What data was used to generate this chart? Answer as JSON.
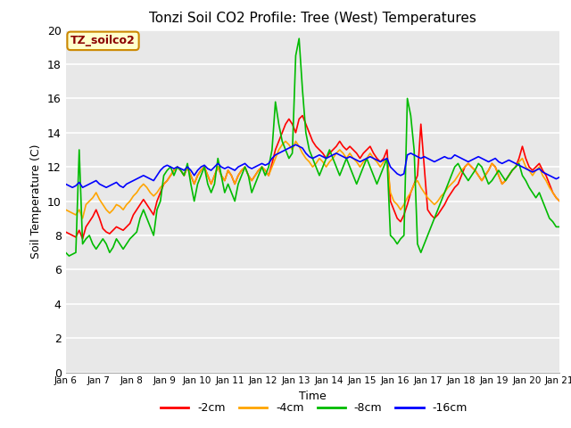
{
  "title": "Tonzi Soil CO2 Profile: Tree (West) Temperatures",
  "xlabel": "Time",
  "ylabel": "Soil Temperature (C)",
  "ylim": [
    0,
    20
  ],
  "yticks": [
    0,
    2,
    4,
    6,
    8,
    10,
    12,
    14,
    16,
    18,
    20
  ],
  "xtick_labels": [
    "Jan 6",
    "Jan 7",
    "Jan 8",
    "Jan 9",
    "Jan 10",
    "Jan 11",
    "Jan 12",
    "Jan 13",
    "Jan 14",
    "Jan 15",
    "Jan 16",
    "Jan 17",
    "Jan 18",
    "Jan 19",
    "Jan 20",
    "Jan 21"
  ],
  "colors": {
    "2cm": "#ff0000",
    "4cm": "#ffa500",
    "8cm": "#00bb00",
    "16cm": "#0000ff"
  },
  "legend_labels": [
    "-2cm",
    "-4cm",
    "-8cm",
    "-16cm"
  ],
  "annotation_text": "TZ_soilco2",
  "annotation_color": "#8b0000",
  "annotation_bg": "#ffffcc",
  "annotation_border": "#cc8800",
  "bg_color": "#e8e8e8",
  "linewidth": 1.2,
  "data_2cm": [
    8.2,
    8.1,
    8.0,
    7.9,
    8.3,
    7.8,
    8.5,
    8.8,
    9.1,
    9.5,
    9.0,
    8.4,
    8.2,
    8.1,
    8.3,
    8.5,
    8.4,
    8.3,
    8.5,
    8.7,
    9.2,
    9.5,
    9.8,
    10.1,
    9.8,
    9.5,
    9.2,
    10.0,
    10.5,
    11.0,
    11.2,
    11.5,
    11.8,
    12.0,
    11.8,
    11.5,
    12.0,
    11.5,
    11.0,
    11.5,
    11.8,
    12.0,
    11.5,
    11.0,
    11.5,
    12.0,
    11.5,
    11.2,
    11.8,
    11.5,
    11.0,
    11.5,
    11.8,
    12.0,
    11.5,
    11.2,
    11.5,
    11.8,
    12.0,
    11.8,
    11.5,
    12.2,
    13.0,
    13.5,
    14.0,
    14.5,
    14.8,
    14.5,
    14.0,
    14.8,
    15.0,
    14.5,
    14.0,
    13.5,
    13.2,
    13.0,
    12.8,
    12.5,
    12.8,
    13.0,
    13.2,
    13.5,
    13.2,
    13.0,
    13.2,
    13.0,
    12.8,
    12.5,
    12.8,
    13.0,
    13.2,
    12.8,
    12.5,
    12.3,
    12.5,
    13.0,
    10.0,
    9.5,
    9.0,
    8.8,
    9.2,
    9.8,
    10.5,
    11.0,
    11.5,
    14.5,
    12.0,
    9.5,
    9.2,
    9.0,
    9.2,
    9.5,
    9.8,
    10.2,
    10.5,
    10.8,
    11.0,
    11.5,
    12.0,
    12.2,
    12.0,
    11.8,
    11.5,
    11.2,
    11.5,
    11.8,
    12.2,
    12.0,
    11.5,
    11.0,
    11.2,
    11.5,
    11.8,
    12.0,
    12.5,
    13.2,
    12.5,
    12.0,
    11.8,
    12.0,
    12.2,
    11.8,
    11.5,
    11.0,
    10.5,
    10.2,
    10.0
  ],
  "data_4cm": [
    9.5,
    9.4,
    9.3,
    9.2,
    9.5,
    9.0,
    9.8,
    10.0,
    10.2,
    10.5,
    10.1,
    9.8,
    9.5,
    9.3,
    9.5,
    9.8,
    9.7,
    9.5,
    9.8,
    10.0,
    10.3,
    10.5,
    10.8,
    11.0,
    10.8,
    10.5,
    10.3,
    10.5,
    10.8,
    11.0,
    11.2,
    11.5,
    11.8,
    12.0,
    11.8,
    11.5,
    12.0,
    11.5,
    11.0,
    11.5,
    11.8,
    12.0,
    11.5,
    11.0,
    11.5,
    12.0,
    11.5,
    11.2,
    11.8,
    11.5,
    11.0,
    11.5,
    11.8,
    12.0,
    11.5,
    11.2,
    11.5,
    11.8,
    12.0,
    11.8,
    11.5,
    12.0,
    12.5,
    13.0,
    13.3,
    13.5,
    13.3,
    13.0,
    13.5,
    13.2,
    12.8,
    12.5,
    12.3,
    12.0,
    12.2,
    12.5,
    12.3,
    12.0,
    12.3,
    12.5,
    12.8,
    13.0,
    12.8,
    12.5,
    12.8,
    12.5,
    12.3,
    12.0,
    12.3,
    12.5,
    12.8,
    12.5,
    12.3,
    12.0,
    12.3,
    12.5,
    10.5,
    10.0,
    9.8,
    9.5,
    9.8,
    10.2,
    10.5,
    11.0,
    11.2,
    10.8,
    10.5,
    10.2,
    10.0,
    9.8,
    10.0,
    10.3,
    10.5,
    10.8,
    11.0,
    11.2,
    11.5,
    11.8,
    12.0,
    12.2,
    12.0,
    11.8,
    11.5,
    11.2,
    11.5,
    11.8,
    12.2,
    12.0,
    11.5,
    11.0,
    11.2,
    11.5,
    11.8,
    12.0,
    12.3,
    12.5,
    12.0,
    11.8,
    11.5,
    11.8,
    12.0,
    11.5,
    11.2,
    10.8,
    10.5,
    10.2,
    10.0
  ],
  "data_8cm": [
    7.0,
    6.8,
    6.9,
    7.0,
    13.0,
    7.5,
    7.8,
    8.0,
    7.5,
    7.2,
    7.5,
    7.8,
    7.5,
    7.0,
    7.3,
    7.8,
    7.5,
    7.2,
    7.5,
    7.8,
    8.0,
    8.2,
    9.0,
    9.5,
    9.0,
    8.5,
    8.0,
    9.5,
    10.0,
    11.5,
    11.8,
    12.0,
    11.5,
    12.0,
    11.8,
    11.5,
    12.2,
    11.0,
    10.0,
    11.0,
    11.5,
    12.0,
    11.0,
    10.5,
    11.0,
    12.5,
    11.5,
    10.5,
    11.0,
    10.5,
    10.0,
    11.0,
    11.5,
    12.0,
    11.5,
    10.5,
    11.0,
    11.5,
    12.0,
    11.5,
    12.0,
    13.0,
    15.8,
    14.5,
    13.5,
    13.0,
    12.5,
    12.8,
    18.5,
    19.5,
    16.5,
    14.0,
    13.0,
    12.5,
    12.0,
    11.5,
    12.0,
    12.5,
    13.0,
    12.5,
    12.0,
    11.5,
    12.0,
    12.5,
    12.0,
    11.5,
    11.0,
    11.5,
    12.0,
    12.5,
    12.0,
    11.5,
    11.0,
    11.5,
    12.0,
    12.5,
    8.0,
    7.8,
    7.5,
    7.8,
    8.0,
    16.0,
    15.0,
    13.0,
    7.5,
    7.0,
    7.5,
    8.0,
    8.5,
    9.0,
    9.5,
    10.0,
    10.5,
    11.0,
    11.5,
    12.0,
    12.2,
    11.8,
    11.5,
    11.2,
    11.5,
    11.8,
    12.2,
    12.0,
    11.5,
    11.0,
    11.2,
    11.5,
    11.8,
    11.5,
    11.2,
    11.5,
    11.8,
    12.0,
    12.2,
    11.5,
    11.2,
    10.8,
    10.5,
    10.2,
    10.5,
    10.0,
    9.5,
    9.0,
    8.8,
    8.5,
    8.5
  ],
  "data_16cm": [
    11.0,
    10.9,
    10.8,
    10.9,
    11.1,
    10.8,
    10.9,
    11.0,
    11.1,
    11.2,
    11.0,
    10.9,
    10.8,
    10.9,
    11.0,
    11.1,
    10.9,
    10.8,
    11.0,
    11.1,
    11.2,
    11.3,
    11.4,
    11.5,
    11.4,
    11.3,
    11.2,
    11.5,
    11.8,
    12.0,
    12.1,
    12.0,
    11.9,
    12.0,
    11.9,
    11.8,
    12.0,
    11.8,
    11.5,
    11.8,
    12.0,
    12.1,
    11.9,
    11.8,
    12.0,
    12.2,
    12.0,
    11.9,
    12.0,
    11.9,
    11.8,
    12.0,
    12.1,
    12.2,
    12.0,
    11.9,
    12.0,
    12.1,
    12.2,
    12.1,
    12.2,
    12.5,
    12.7,
    12.8,
    12.9,
    13.0,
    13.1,
    13.2,
    13.3,
    13.2,
    13.1,
    12.8,
    12.6,
    12.5,
    12.6,
    12.7,
    12.6,
    12.5,
    12.6,
    12.7,
    12.8,
    12.7,
    12.6,
    12.5,
    12.6,
    12.5,
    12.4,
    12.3,
    12.4,
    12.5,
    12.6,
    12.5,
    12.4,
    12.3,
    12.4,
    12.5,
    12.0,
    11.8,
    11.6,
    11.5,
    11.6,
    12.7,
    12.8,
    12.7,
    12.6,
    12.5,
    12.6,
    12.5,
    12.4,
    12.3,
    12.4,
    12.5,
    12.6,
    12.5,
    12.5,
    12.7,
    12.6,
    12.5,
    12.4,
    12.3,
    12.4,
    12.5,
    12.6,
    12.5,
    12.4,
    12.3,
    12.4,
    12.5,
    12.3,
    12.2,
    12.3,
    12.4,
    12.3,
    12.2,
    12.1,
    12.0,
    11.9,
    11.8,
    11.7,
    11.8,
    11.9,
    11.7,
    11.6,
    11.5,
    11.4,
    11.3,
    11.4
  ]
}
